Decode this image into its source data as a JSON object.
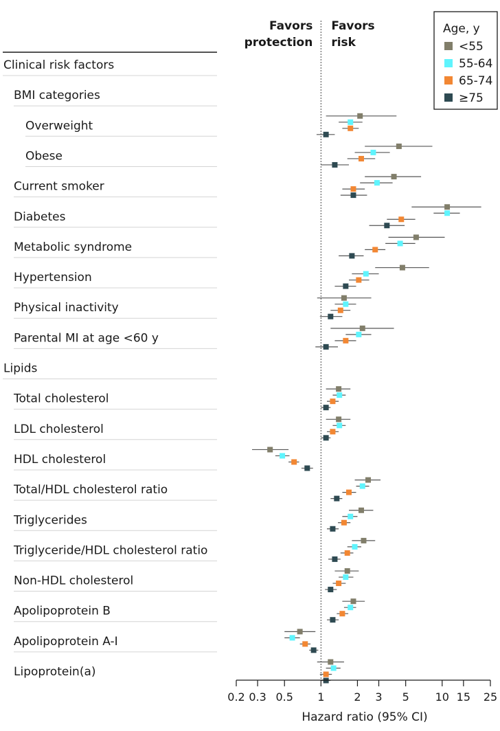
{
  "chart_data": {
    "type": "forest",
    "xlabel": "Hazard ratio (95% CI)",
    "xscale": "log",
    "xlim": [
      0.2,
      25
    ],
    "reference_line": 1,
    "xticks": [
      0.2,
      0.3,
      0.5,
      1,
      2,
      3,
      5,
      10,
      15,
      25
    ],
    "xtick_labels": [
      "0.2",
      "0.3",
      "0.5",
      "1",
      "2",
      "3",
      "5",
      "10",
      "15",
      "25"
    ],
    "headers": {
      "left": [
        "Favors",
        "protection"
      ],
      "right": [
        "Favors",
        "risk"
      ]
    },
    "legend": {
      "title": "Age, y",
      "entries": [
        {
          "label": "<55",
          "color": "#817e6a"
        },
        {
          "label": "55-64",
          "color": "#5ff4fd"
        },
        {
          "label": "65-74",
          "color": "#f28733"
        },
        {
          "label": "≥75",
          "color": "#2e4a52"
        }
      ]
    },
    "series_names": [
      "<55",
      "55-64",
      "65-74",
      "≥75"
    ],
    "rows": [
      {
        "label": "Clinical risk factors",
        "level": 0
      },
      {
        "label": "BMI categories",
        "level": 1
      },
      {
        "label": "Overweight",
        "level": 2,
        "est": [
          [
            2.1,
            1.1,
            4.2
          ],
          [
            1.75,
            1.4,
            2.2
          ],
          [
            1.75,
            1.5,
            2.05
          ],
          [
            1.1,
            0.92,
            1.3
          ]
        ]
      },
      {
        "label": "Obese",
        "level": 2,
        "est": [
          [
            4.4,
            2.3,
            8.3
          ],
          [
            2.7,
            1.9,
            3.7
          ],
          [
            2.15,
            1.65,
            2.8
          ],
          [
            1.3,
            1.0,
            1.7
          ]
        ]
      },
      {
        "label": "Current smoker",
        "level": 1,
        "est": [
          [
            4.0,
            2.3,
            6.7
          ],
          [
            2.9,
            2.1,
            3.9
          ],
          [
            1.85,
            1.5,
            2.3
          ],
          [
            1.85,
            1.45,
            2.4
          ]
        ]
      },
      {
        "label": "Diabetes",
        "level": 1,
        "est": [
          [
            11,
            5.6,
            21
          ],
          [
            11,
            8.5,
            14
          ],
          [
            4.6,
            3.5,
            6.0
          ],
          [
            3.5,
            2.5,
            4.9
          ]
        ]
      },
      {
        "label": "Metabolic syndrome",
        "level": 1,
        "est": [
          [
            6.1,
            3.6,
            10.5
          ],
          [
            4.5,
            3.4,
            6.0
          ],
          [
            2.8,
            2.3,
            3.4
          ],
          [
            1.8,
            1.4,
            2.25
          ]
        ]
      },
      {
        "label": "Hypertension",
        "level": 1,
        "est": [
          [
            4.7,
            2.8,
            7.8
          ],
          [
            2.35,
            1.8,
            3.0
          ],
          [
            2.05,
            1.7,
            2.5
          ],
          [
            1.6,
            1.3,
            1.95
          ]
        ]
      },
      {
        "label": "Physical inactivity",
        "level": 1,
        "est": [
          [
            1.55,
            0.93,
            2.6
          ],
          [
            1.6,
            1.3,
            1.95
          ],
          [
            1.45,
            1.2,
            1.75
          ],
          [
            1.2,
            0.98,
            1.5
          ]
        ]
      },
      {
        "label": "Parental MI at age <60 y",
        "level": 1,
        "est": [
          [
            2.2,
            1.2,
            4.0
          ],
          [
            2.05,
            1.6,
            2.6
          ],
          [
            1.6,
            1.3,
            1.95
          ],
          [
            1.1,
            0.9,
            1.38
          ]
        ]
      },
      {
        "label": "Lipids",
        "level": 0
      },
      {
        "label": "Total cholesterol",
        "level": 1,
        "est": [
          [
            1.4,
            1.1,
            1.75
          ],
          [
            1.42,
            1.25,
            1.6
          ],
          [
            1.25,
            1.12,
            1.4
          ],
          [
            1.1,
            1.0,
            1.2
          ]
        ]
      },
      {
        "label": "LDL cholesterol",
        "level": 1,
        "est": [
          [
            1.4,
            1.1,
            1.75
          ],
          [
            1.42,
            1.25,
            1.6
          ],
          [
            1.25,
            1.12,
            1.4
          ],
          [
            1.1,
            1.0,
            1.2
          ]
        ]
      },
      {
        "label": "HDL cholesterol",
        "level": 1,
        "est": [
          [
            0.38,
            0.27,
            0.54
          ],
          [
            0.48,
            0.42,
            0.55
          ],
          [
            0.6,
            0.54,
            0.66
          ],
          [
            0.77,
            0.69,
            0.86
          ]
        ]
      },
      {
        "label": "Total/HDL cholesterol ratio",
        "level": 1,
        "est": [
          [
            2.45,
            1.9,
            3.1
          ],
          [
            2.2,
            1.95,
            2.5
          ],
          [
            1.7,
            1.5,
            1.95
          ],
          [
            1.35,
            1.2,
            1.5
          ]
        ]
      },
      {
        "label": "Triglycerides",
        "level": 1,
        "est": [
          [
            2.15,
            1.7,
            2.7
          ],
          [
            1.75,
            1.5,
            2.0
          ],
          [
            1.55,
            1.38,
            1.75
          ],
          [
            1.25,
            1.12,
            1.4
          ]
        ]
      },
      {
        "label": "Triglyceride/HDL cholesterol ratio",
        "level": 1,
        "est": [
          [
            2.25,
            1.8,
            2.8
          ],
          [
            1.9,
            1.65,
            2.15
          ],
          [
            1.65,
            1.45,
            1.85
          ],
          [
            1.3,
            1.15,
            1.45
          ]
        ]
      },
      {
        "label": "Non-HDL cholesterol",
        "level": 1,
        "est": [
          [
            1.65,
            1.3,
            2.05
          ],
          [
            1.6,
            1.4,
            1.85
          ],
          [
            1.4,
            1.25,
            1.6
          ],
          [
            1.2,
            1.08,
            1.35
          ]
        ]
      },
      {
        "label": "Apolipoprotein B",
        "level": 1,
        "est": [
          [
            1.85,
            1.5,
            2.3
          ],
          [
            1.75,
            1.55,
            1.95
          ],
          [
            1.5,
            1.35,
            1.68
          ],
          [
            1.25,
            1.12,
            1.4
          ]
        ]
      },
      {
        "label": "Apolipoprotein A-I",
        "level": 1,
        "est": [
          [
            0.67,
            0.5,
            0.9
          ],
          [
            0.58,
            0.5,
            0.67
          ],
          [
            0.74,
            0.67,
            0.82
          ],
          [
            0.87,
            0.8,
            0.95
          ]
        ]
      },
      {
        "label": "Lipoprotein(a)",
        "level": 1,
        "est": [
          [
            1.2,
            0.93,
            1.55
          ],
          [
            1.27,
            1.1,
            1.45
          ],
          [
            1.1,
            0.98,
            1.23
          ],
          [
            1.1,
            1.0,
            1.2
          ]
        ]
      }
    ]
  }
}
